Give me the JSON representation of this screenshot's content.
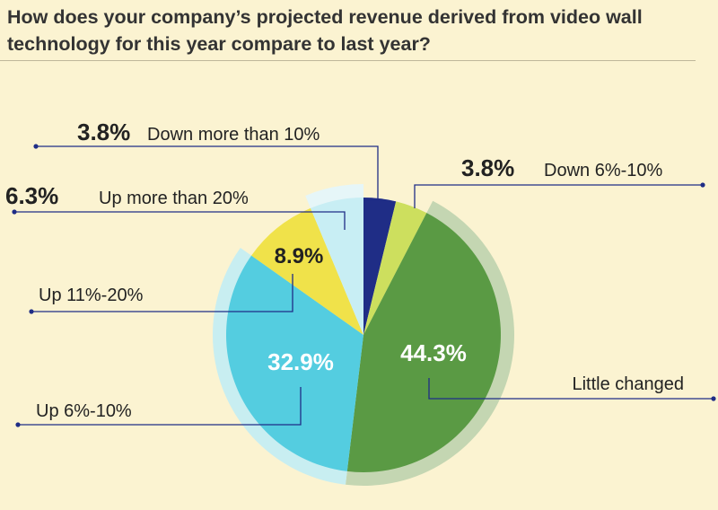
{
  "title": "How does your company’s projected revenue derived from video wall technology for this year compare to last year?",
  "chart_data": {
    "type": "pie",
    "title": "How does your company’s projected revenue derived from video wall technology for this year compare to last year?",
    "slices": [
      {
        "label": "Down more than 10%",
        "value": 3.8,
        "value_text": "3.8%",
        "color": "#1f2d86",
        "ring_color": "#aeb0dc"
      },
      {
        "label": "Down 6%-10%",
        "value": 3.8,
        "value_text": "3.8%",
        "color": "#cddf5e",
        "ring_color": "#e6ecb2"
      },
      {
        "label": "Little changed",
        "value": 44.3,
        "value_text": "44.3%",
        "color": "#5a9a44",
        "ring_color": "#c4d6b2"
      },
      {
        "label": "Up 6%-10%",
        "value": 32.9,
        "value_text": "32.9%",
        "color": "#54cde0",
        "ring_color": "#c8eef1"
      },
      {
        "label": "Up 11%-20%",
        "value": 8.9,
        "value_text": "8.9%",
        "color": "#f0e24a",
        "ring_color": "#f6efb8"
      },
      {
        "label": "Up more than 20%",
        "value": 6.3,
        "value_text": "6.3%",
        "color": "#c8eef4",
        "ring_color": "#e6f6f8"
      }
    ],
    "leader_color": "#1f2d86",
    "label_text_color": "#222222",
    "inner_label_color": "#ffffff"
  }
}
